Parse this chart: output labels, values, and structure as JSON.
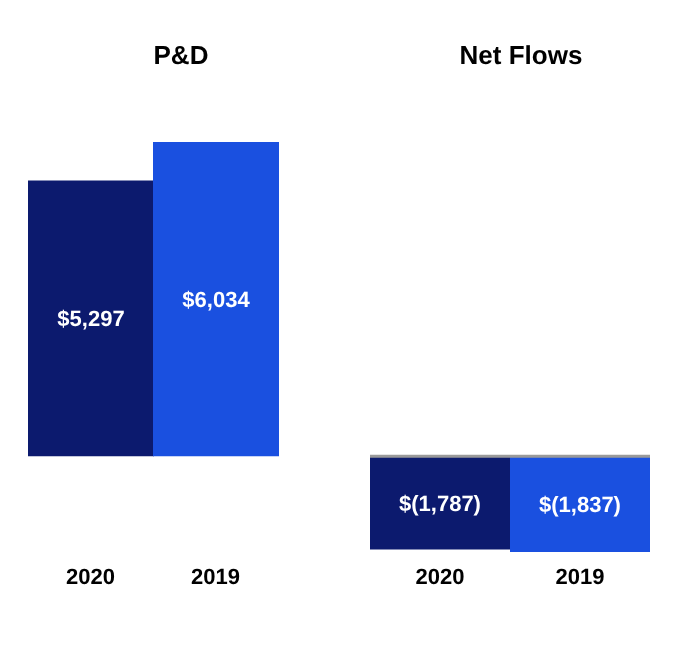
{
  "chart_data": [
    {
      "type": "bar",
      "title": "P&D",
      "categories": [
        "2020",
        "2019"
      ],
      "values": [
        5297,
        6034
      ],
      "colors": [
        "#0c1a6e",
        "#1a50e0"
      ],
      "value_labels": [
        "$5,297",
        "$6,034"
      ]
    },
    {
      "type": "bar",
      "title": "Net Flows",
      "categories": [
        "2020",
        "2019"
      ],
      "values": [
        -1787,
        -1837
      ],
      "colors": [
        "#0c1a6e",
        "#1a50e0"
      ],
      "value_labels": [
        "$(1,787)",
        "$(1,837)"
      ],
      "ref_lines": [
        {
          "axis": "y",
          "value": 0,
          "color": "#9a9a9a"
        }
      ]
    }
  ]
}
